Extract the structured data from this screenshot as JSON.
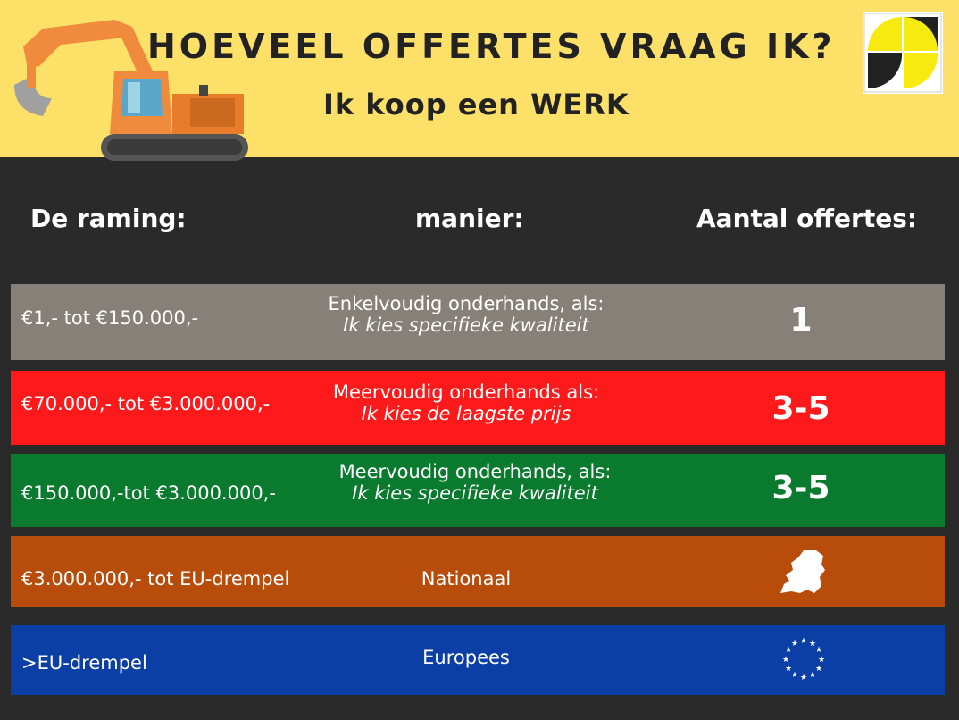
{
  "header": {
    "title": "HOEVEEL OFFERTES VRAAG IK?",
    "subtitle": "Ik koop een WERK",
    "excavator_icon": "excavator-illustration",
    "logo_icon": "quadrant-logo"
  },
  "columns": {
    "range": "De raming:",
    "method": "manier:",
    "count": "Aantal offertes:"
  },
  "rows": [
    {
      "range": "€1,- tot €150.000,-",
      "method": "Enkelvoudig onderhands, als:",
      "condition": "Ik kies specifieke kwaliteit",
      "count": "1",
      "color": "#878079"
    },
    {
      "range": "€70.000,- tot €3.000.000,-",
      "method": "Meervoudig onderhands als:",
      "condition": "Ik kies de laagste prijs",
      "count": "3-5",
      "color": "#fe1a1a"
    },
    {
      "range": "€150.000,-tot €3.000.000,-",
      "method": "Meervoudig onderhands, als:",
      "condition": "Ik kies specifieke kwaliteit",
      "count": "3-5",
      "color": "#0a7a2e"
    },
    {
      "range": "€3.000.000,- tot EU-drempel",
      "method": "Nationaal",
      "condition": "",
      "count_icon": "netherlands-map-icon",
      "color": "#b84c0a"
    },
    {
      "range": ">EU-drempel",
      "method": "Europees",
      "condition": "",
      "count_icon": "eu-stars-icon",
      "color": "#0b3fa6"
    }
  ]
}
